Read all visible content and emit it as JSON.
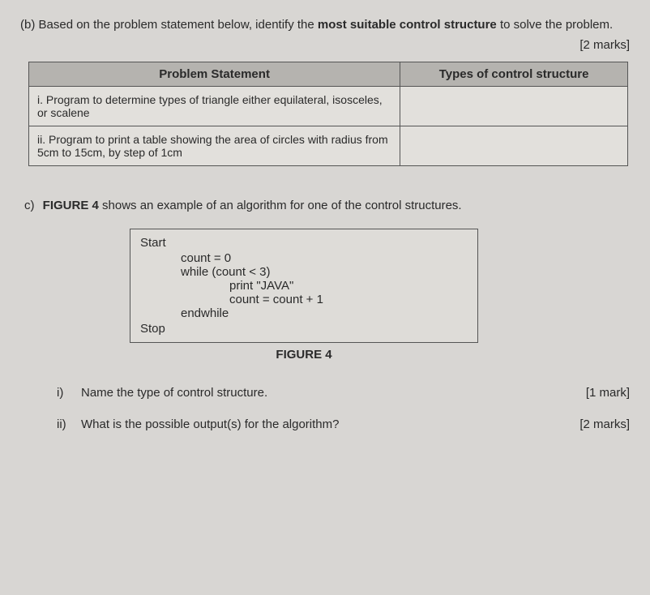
{
  "questionB": {
    "label": "(b)",
    "text": "Based on the problem statement below, identify the ",
    "bold": "most suitable control structure",
    "textAfter": " to solve the problem.",
    "marks": "[2 marks]"
  },
  "table": {
    "header1": "Problem Statement",
    "header2": "Types of control structure",
    "row1": "i. Program to determine types of triangle either equilateral, isosceles, or scalene",
    "row1_answer": "",
    "row2": "ii. Program to print a table showing the area of circles with radius from 5cm to 15cm, by step of 1cm",
    "row2_answer": ""
  },
  "questionC": {
    "label": "c)",
    "textBefore": "",
    "bold": "FIGURE 4",
    "textAfter": " shows an example of an algorithm for one of the control structures."
  },
  "figure": {
    "start": "Start",
    "line1": "count = 0",
    "line2": "while (count < 3)",
    "line3": "print \"JAVA\"",
    "line4": "count = count + 1",
    "line5": "endwhile",
    "stop": "Stop",
    "caption": "FIGURE 4"
  },
  "subQ1": {
    "num": "i)",
    "text": "Name the type of control structure.",
    "marks": "[1 mark]"
  },
  "subQ2": {
    "num": "ii)",
    "text": "What is the possible output(s) for the algorithm?",
    "marks": "[2 marks]"
  }
}
